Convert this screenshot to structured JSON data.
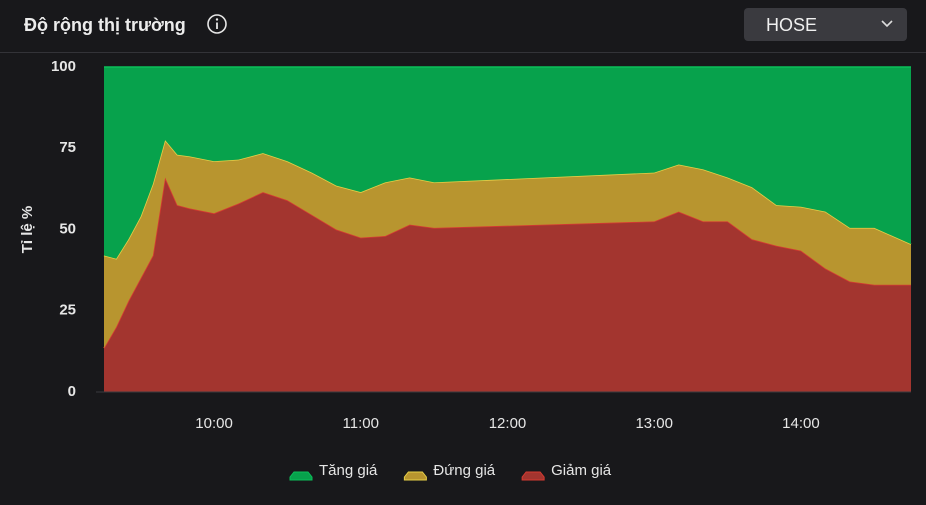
{
  "exchange": "HOSE",
  "chart_data": {
    "type": "stacked_area",
    "title": "Độ rộng thị trường",
    "y_label": "Tỉ lệ %",
    "x": [
      "09:15",
      "09:20",
      "09:25",
      "09:30",
      "09:35",
      "09:40",
      "09:45",
      "09:50",
      "10:00",
      "10:10",
      "10:20",
      "10:30",
      "10:40",
      "10:50",
      "11:00",
      "11:10",
      "11:20",
      "11:30",
      "13:00",
      "13:10",
      "13:20",
      "13:30",
      "13:40",
      "13:50",
      "14:00",
      "14:10",
      "14:20",
      "14:30",
      "14:45"
    ],
    "xlim": [
      "09:15",
      "14:45"
    ],
    "xticks": [
      "10:00",
      "11:00",
      "12:00",
      "13:00",
      "14:00"
    ],
    "ylim": [
      0,
      100
    ],
    "yticks": [
      0,
      25,
      50,
      75,
      100
    ],
    "series": [
      {
        "name": "Tăng giá",
        "color": "#07a24c",
        "line_color": "#0bbf5a",
        "values": [
          58,
          59,
          53,
          46,
          36,
          22.5,
          27,
          27.5,
          29,
          28.5,
          26.5,
          29,
          32.5,
          36.5,
          38.5,
          35.5,
          34,
          35.5,
          32.5,
          30,
          31.5,
          34,
          37,
          42.5,
          43,
          44.5,
          49.5,
          49.5,
          54.5
        ]
      },
      {
        "name": "Đứng giá",
        "color": "#b8952f",
        "line_color": "#e6cf47",
        "values": [
          28.5,
          21,
          19,
          19,
          22,
          11.5,
          15.5,
          16,
          16,
          13.5,
          12,
          12,
          13,
          13.5,
          14,
          16.5,
          14.5,
          14,
          15,
          14.5,
          16,
          13.5,
          16,
          12.5,
          13.5,
          17.5,
          16.5,
          17.5,
          12.5
        ]
      },
      {
        "name": "Giảm giá",
        "color": "#a3352f",
        "line_color": "#d63a31",
        "values": [
          13.5,
          20,
          28,
          35,
          42,
          66,
          57.5,
          56.5,
          55,
          58,
          61.5,
          59,
          54.5,
          50,
          47.5,
          48,
          51.5,
          50.5,
          52.5,
          55.5,
          52.5,
          52.5,
          47,
          45,
          43.5,
          38,
          34,
          33,
          33
        ]
      }
    ]
  }
}
